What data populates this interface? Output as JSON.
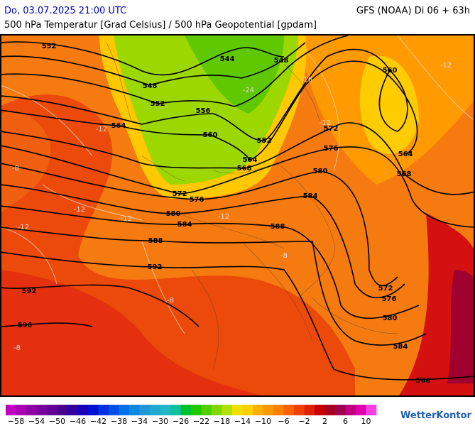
{
  "header": {
    "datetime": "Do, 03.07.2025 21:00 UTC",
    "model": "GFS (NOAA) Di 06 + 63h",
    "title": "500 hPa Temperatur [Grad Celsius] / 500 hPa Geopotential [gpdam]"
  },
  "contour_labels": [
    "552",
    "544",
    "548",
    "560",
    "548",
    "552",
    "556",
    "564",
    "560",
    "552",
    "572",
    "576",
    "564",
    "568",
    "564",
    "580",
    "568",
    "572",
    "576",
    "584",
    "580",
    "584",
    "588",
    "588",
    "592",
    "592",
    "572",
    "576",
    "596",
    "580",
    "584",
    "588"
  ],
  "temperature_labels": [
    "-12",
    "-12",
    "-12",
    "-8",
    "-8",
    "-12",
    "-12",
    "-24",
    "-16",
    "-12",
    "-8",
    "-8",
    "-12"
  ],
  "legend": {
    "labels": [
      "−58",
      "−54",
      "−50",
      "−46",
      "−42",
      "−38",
      "−34",
      "−30",
      "−26",
      "−22",
      "−18",
      "−14",
      "−10",
      "−6",
      "−2",
      "2",
      "6",
      "10"
    ],
    "colors": [
      "#c000c0",
      "#a800b4",
      "#9000a8",
      "#7800a0",
      "#600098",
      "#480090",
      "#3000a0",
      "#1800b8",
      "#0010d0",
      "#0030e0",
      "#0050e8",
      "#0070e8",
      "#1088e0",
      "#2098d8",
      "#20a8d0",
      "#20b8c8",
      "#10c0a0",
      "#00c030",
      "#20c800",
      "#50d000",
      "#80d800",
      "#b0e000",
      "#f0e000",
      "#ffd000",
      "#ffb000",
      "#ff9800",
      "#ff8000",
      "#f86000",
      "#f04000",
      "#e02000",
      "#c80000",
      "#a80020",
      "#a00050",
      "#c00080",
      "#e000b0",
      "#ff40e0"
    ],
    "brand": "WetterKontor"
  }
}
